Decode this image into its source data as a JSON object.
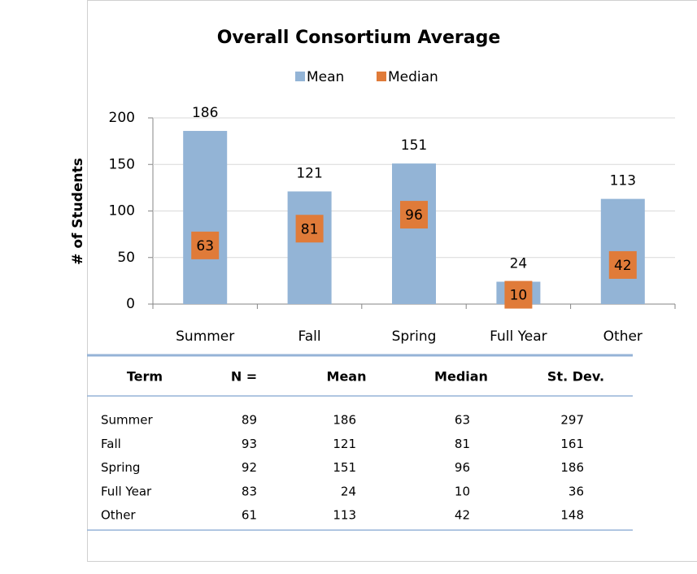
{
  "chart_data": {
    "type": "bar",
    "title": "Overall Consortium Average",
    "y_label": "# of Students",
    "categories": [
      "Summer",
      "Fall",
      "Spring",
      "Full Year",
      "Other"
    ],
    "series": [
      {
        "name": "Mean",
        "color": "#93b4d6",
        "values": [
          186,
          121,
          151,
          24,
          113
        ]
      },
      {
        "name": "Median",
        "color": "#e07b39",
        "marker": "square",
        "values": [
          63,
          81,
          96,
          10,
          42
        ]
      }
    ],
    "ylim": [
      0,
      200
    ],
    "yticks": [
      0,
      50,
      100,
      150,
      200
    ],
    "grid": true,
    "legend": "top"
  },
  "table": {
    "header": [
      "Term",
      "N =",
      "Mean",
      "Median",
      "St. Dev."
    ],
    "rows": [
      [
        "Summer",
        "89",
        "186",
        "63",
        "297"
      ],
      [
        "Fall",
        "93",
        "121",
        "81",
        "161"
      ],
      [
        "Spring",
        "92",
        "151",
        "96",
        "186"
      ],
      [
        "Full Year",
        "83",
        "24",
        "10",
        "36"
      ],
      [
        "Other",
        "61",
        "113",
        "42",
        "148"
      ]
    ]
  }
}
